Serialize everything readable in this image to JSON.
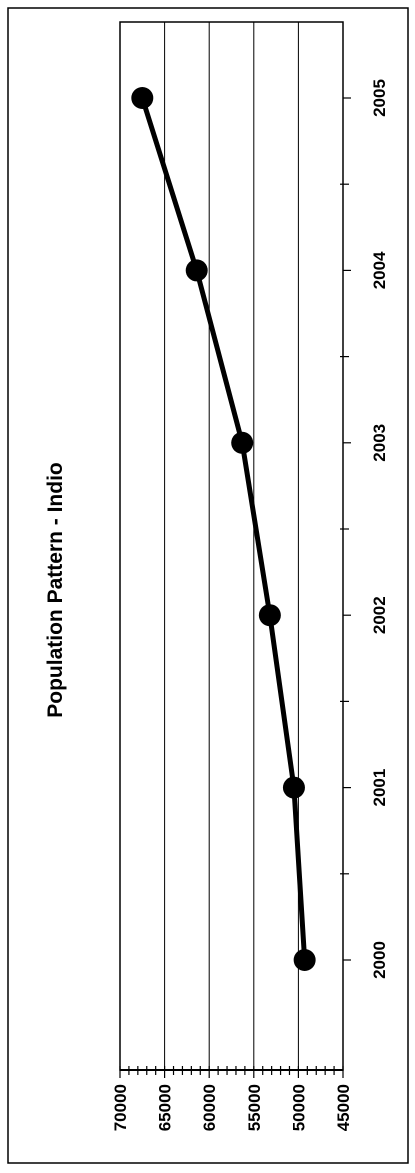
{
  "chart_data": {
    "type": "line",
    "title": "Population Pattern - Indio",
    "xlabel": "",
    "ylabel": "",
    "orientation": "rotated 90 degrees counter-clockwise",
    "grid": true,
    "legend": "none",
    "ylim": [
      45000,
      70000
    ],
    "yticks": [
      45000,
      50000,
      55000,
      60000,
      65000,
      70000
    ],
    "xticks": [
      "2000",
      "2001",
      "2002",
      "2003",
      "2004",
      "2005"
    ],
    "series": [
      {
        "x": [
          "2000",
          "2001",
          "2002",
          "2003",
          "2004",
          "2005"
        ],
        "values": [
          49300,
          50500,
          53200,
          56300,
          61400,
          67500
        ]
      }
    ],
    "colors": {
      "line": "#000000",
      "marker": "#000000",
      "grid": "#000000"
    }
  }
}
